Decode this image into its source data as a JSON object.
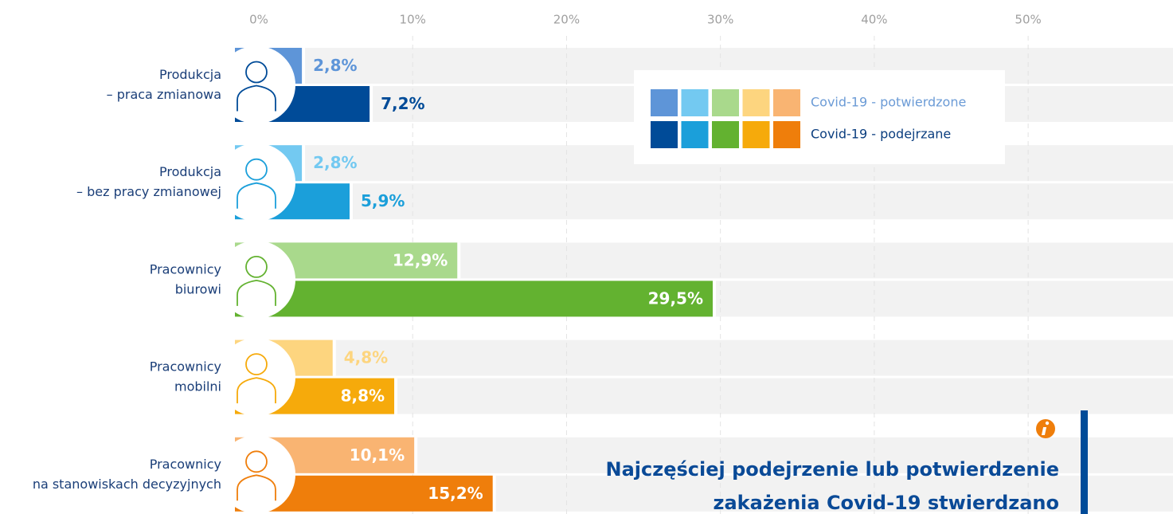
{
  "chart_data": {
    "type": "hbar",
    "categories": [
      [
        "Produkcja",
        "– praca zmianowa"
      ],
      [
        "Produkcja",
        "– bez pracy zmianowej"
      ],
      [
        "Pracownicy",
        "biurowi"
      ],
      [
        "Pracownicy",
        "mobilni"
      ],
      [
        "Pracownicy",
        "na stanowiskach decyzyjnych"
      ]
    ],
    "series": [
      {
        "name": "Covid-19 - potwierdzone",
        "colors": [
          "#5e95d8",
          "#73c9f1",
          "#a9d98c",
          "#fdd57f",
          "#f9b472"
        ],
        "values": [
          2.8,
          2.8,
          12.9,
          4.8,
          10.1
        ],
        "value_labels": [
          "2,8%",
          "2,8%",
          "12,9%",
          "4,8%",
          "10,1%"
        ]
      },
      {
        "name": "Covid-19 - podejrzane",
        "colors": [
          "#004b98",
          "#1b9fda",
          "#63b230",
          "#f6aa0b",
          "#ef7e0b"
        ],
        "values": [
          7.2,
          5.9,
          29.5,
          8.8,
          15.2
        ],
        "value_labels": [
          "7,2%",
          "5,9%",
          "29,5%",
          "8,8%",
          "15,2%"
        ]
      }
    ],
    "xlim": [
      0,
      59
    ],
    "xticks": [
      {
        "value": 0,
        "label": "0%"
      },
      {
        "value": 10,
        "label": "10%"
      },
      {
        "value": 20,
        "label": "20%"
      },
      {
        "value": 30,
        "label": "30%"
      },
      {
        "value": 40,
        "label": "40%"
      },
      {
        "value": 50,
        "label": "50%"
      }
    ],
    "grid": true,
    "legend": "upper right",
    "annotation": [
      "Najczęściej podejrzenie lub potwierdzenie",
      "zakażenia Covid-19 stwierdzano"
    ]
  }
}
